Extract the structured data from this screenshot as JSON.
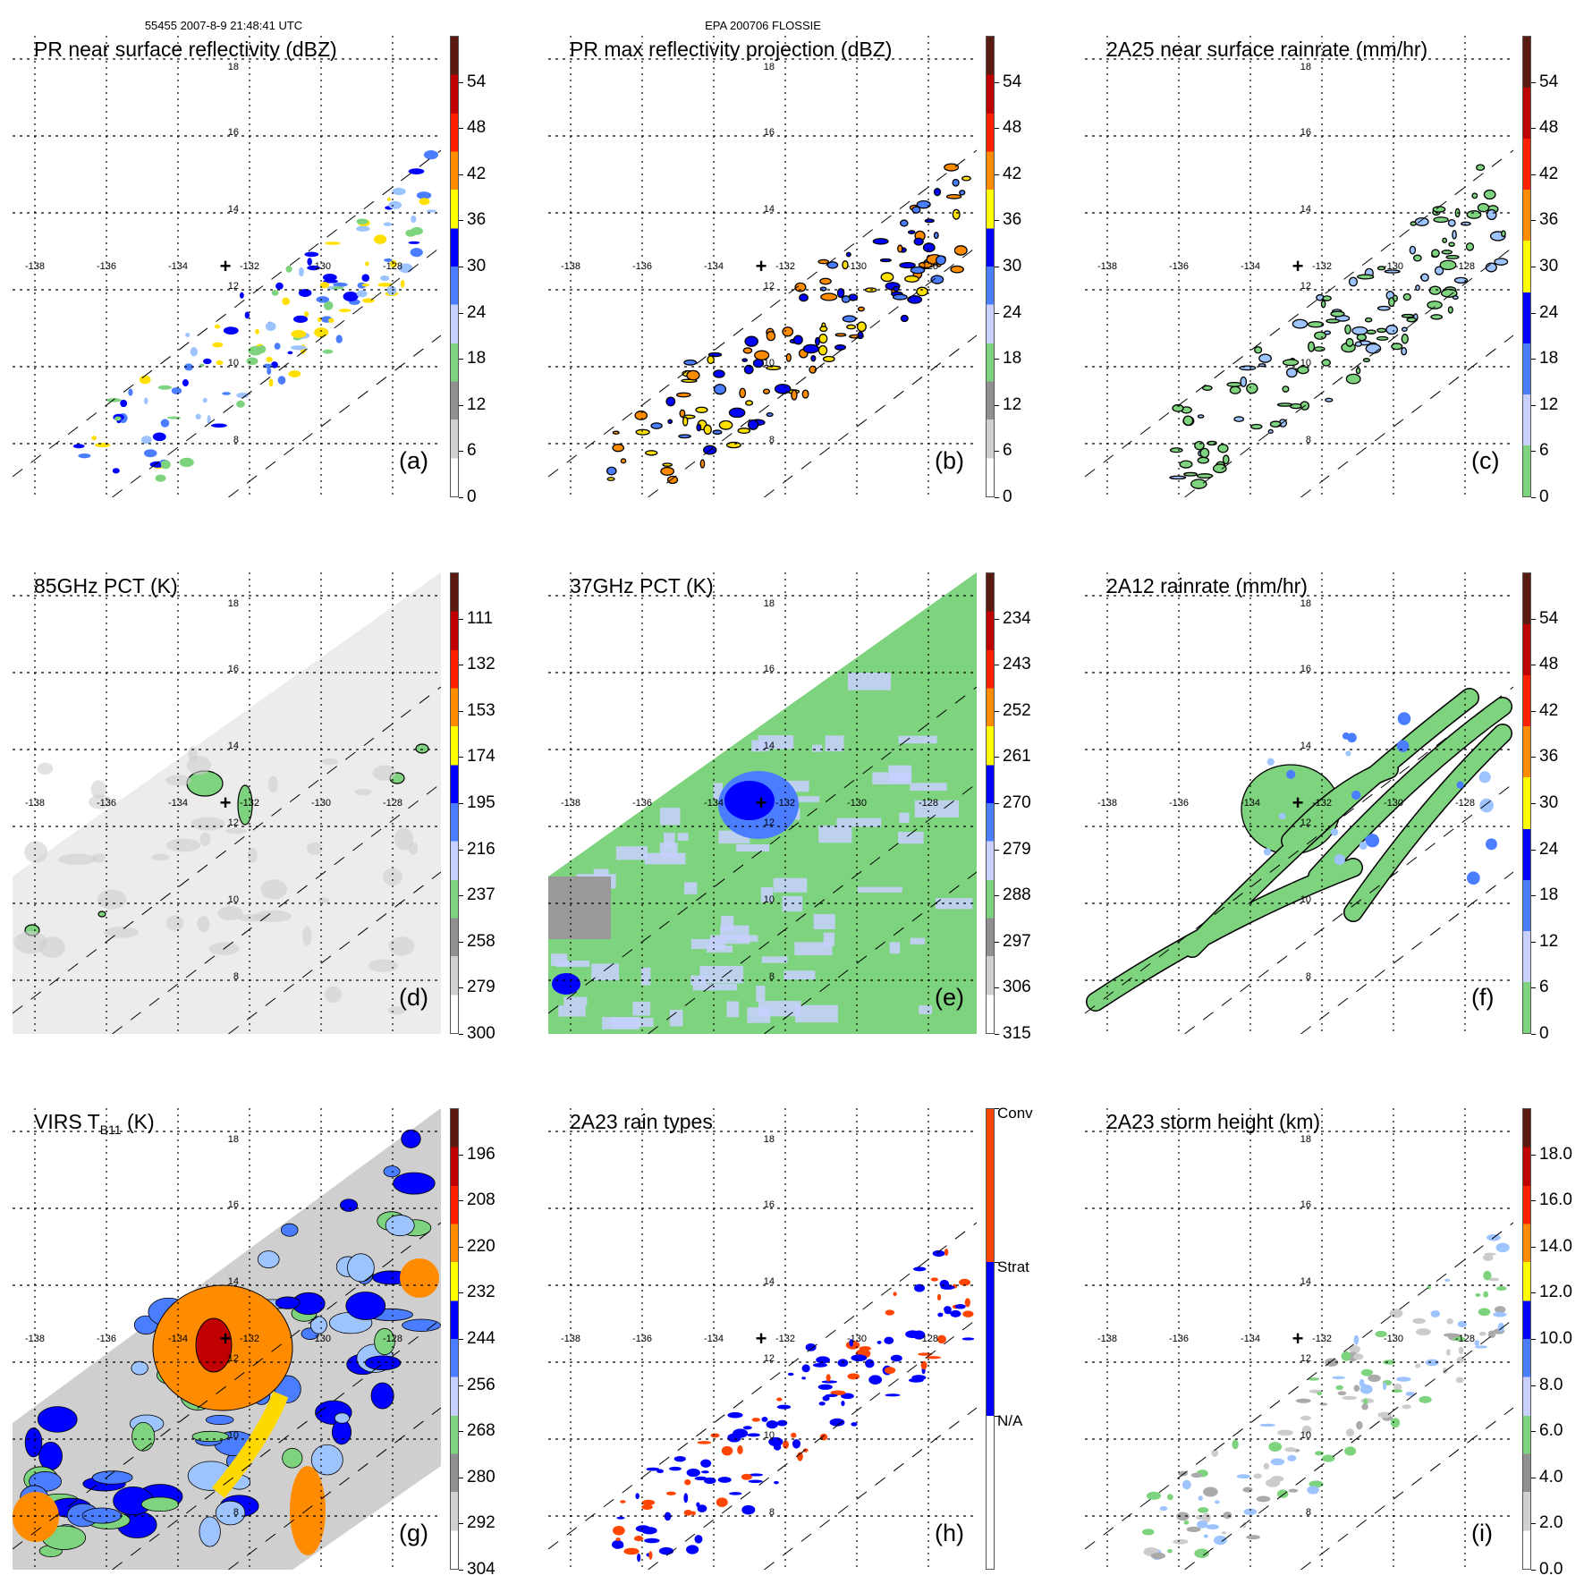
{
  "header": {
    "left": "55455 2007-8-9 21:48:41 UTC",
    "center": "EPA 200706 FLOSSIE"
  },
  "grid": {
    "lon_labels": [
      "-138",
      "-136",
      "-134",
      "-132",
      "-130",
      "-128"
    ],
    "lat_labels": [
      "18",
      "16",
      "14",
      "12",
      "10",
      "8"
    ],
    "center_marker": "+"
  },
  "panels": [
    {
      "id": "a",
      "title": "PR near surface reflectivity (dBZ)",
      "letter": "(a)",
      "style": "sparse",
      "palette": [
        "#0000ff",
        "#4a7dff",
        "#9ec4ff",
        "#7ed37e",
        "#ffe000"
      ],
      "cbar_labels": [
        "0",
        "6",
        "12",
        "18",
        "24",
        "30",
        "36",
        "42",
        "48",
        "54"
      ],
      "cbar_type": "dbz"
    },
    {
      "id": "b",
      "title": "PR max reflectivity projection (dBZ)",
      "letter": "(b)",
      "style": "sparse-outline",
      "palette": [
        "#0000ff",
        "#4a7dff",
        "#ffe000",
        "#ff8c00"
      ],
      "cbar_labels": [
        "0",
        "6",
        "12",
        "18",
        "24",
        "30",
        "36",
        "42",
        "48",
        "54"
      ],
      "cbar_type": "dbz"
    },
    {
      "id": "c",
      "title": "2A25 near surface rainrate (mm/hr)",
      "letter": "(c)",
      "style": "sparse-outline",
      "palette": [
        "#7ed37e",
        "#7ed37e",
        "#9ec4ff"
      ],
      "cbar_labels": [
        "0",
        "6",
        "12",
        "18",
        "24",
        "30",
        "36",
        "42",
        "48",
        "54"
      ],
      "cbar_type": "rain"
    },
    {
      "id": "d",
      "title": "85GHz PCT (K)",
      "letter": "(d)",
      "style": "pct85",
      "palette": [
        "#7ed37e",
        "#555555"
      ],
      "cbar_labels": [
        "300",
        "279",
        "258",
        "237",
        "216",
        "195",
        "174",
        "153",
        "132",
        "111"
      ],
      "cbar_type": "dbz"
    },
    {
      "id": "e",
      "title": "37GHz PCT (K)",
      "letter": "(e)",
      "style": "pct37",
      "palette": [
        "#7ed37e",
        "#c8d0ff",
        "#4a7dff",
        "#0000ff",
        "#999999"
      ],
      "cbar_labels": [
        "315",
        "306",
        "297",
        "288",
        "279",
        "270",
        "261",
        "252",
        "243",
        "234"
      ],
      "cbar_type": "dbz"
    },
    {
      "id": "f",
      "title": "2A12 rainrate (mm/hr)",
      "letter": "(f)",
      "style": "tmi",
      "palette": [
        "#7ed37e",
        "#9ec4ff",
        "#4a7dff"
      ],
      "cbar_labels": [
        "0",
        "6",
        "12",
        "18",
        "24",
        "30",
        "36",
        "42",
        "48",
        "54"
      ],
      "cbar_type": "rain"
    },
    {
      "id": "g",
      "title": "VIRS T",
      "title_sub": "B11",
      "title_suffix": " (K)",
      "letter": "(g)",
      "style": "ir",
      "palette": [
        "#ff8c00",
        "#ffd800",
        "#0000ff",
        "#4a7dff",
        "#9ec4ff",
        "#7ed37e",
        "#c00000"
      ],
      "cbar_labels": [
        "304",
        "292",
        "280",
        "268",
        "256",
        "244",
        "232",
        "220",
        "208",
        "196"
      ],
      "cbar_type": "ir"
    },
    {
      "id": "h",
      "title": "2A23 rain types",
      "letter": "(h)",
      "style": "sparse",
      "palette": [
        "#0000ff",
        "#0000ff",
        "#ff4500"
      ],
      "cbar_labels": [
        "N/A",
        "Strat",
        "Conv"
      ],
      "cbar_type": "types"
    },
    {
      "id": "i",
      "title": "2A23 storm height (km)",
      "letter": "(i)",
      "style": "sparse",
      "palette": [
        "#cccccc",
        "#7ed37e",
        "#9ec4ff",
        "#aaaaaa"
      ],
      "cbar_labels": [
        "0.0",
        "2.0",
        "4.0",
        "6.0",
        "8.0",
        "10.0",
        "12.0",
        "14.0",
        "16.0",
        "18.0"
      ],
      "cbar_type": "dbz"
    }
  ],
  "colorbars": {
    "dbz": [
      "#ffffff",
      "#d0d0d0",
      "#909090",
      "#7ed37e",
      "#c8d0ff",
      "#4a7dff",
      "#0000ff",
      "#ffff00",
      "#ff8c00",
      "#ff2000",
      "#c00000",
      "#5a1a10"
    ],
    "rain": [
      "#7ed37e",
      "#c8d0ff",
      "#4a7dff",
      "#0000ff",
      "#ffff00",
      "#ff8c00",
      "#ff2000",
      "#c00000",
      "#5a1a10"
    ],
    "ir": [
      "#ffffff",
      "#d0d0d0",
      "#909090",
      "#7ed37e",
      "#c8d0ff",
      "#4a7dff",
      "#0000ff",
      "#ffff00",
      "#ff8c00",
      "#ff2000",
      "#c00000",
      "#5a1a10"
    ],
    "types": [
      "#ffffff",
      "#0000ff",
      "#ff4500"
    ]
  }
}
